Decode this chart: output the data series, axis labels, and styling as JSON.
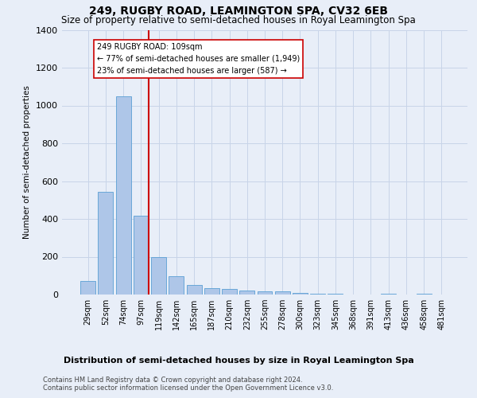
{
  "title": "249, RUGBY ROAD, LEAMINGTON SPA, CV32 6EB",
  "subtitle": "Size of property relative to semi-detached houses in Royal Leamington Spa",
  "xlabel_bottom": "Distribution of semi-detached houses by size in Royal Leamington Spa",
  "ylabel": "Number of semi-detached properties",
  "footnote": "Contains HM Land Registry data © Crown copyright and database right 2024.\nContains public sector information licensed under the Open Government Licence v3.0.",
  "categories": [
    "29sqm",
    "52sqm",
    "74sqm",
    "97sqm",
    "119sqm",
    "142sqm",
    "165sqm",
    "187sqm",
    "210sqm",
    "232sqm",
    "255sqm",
    "278sqm",
    "300sqm",
    "323sqm",
    "345sqm",
    "368sqm",
    "391sqm",
    "413sqm",
    "436sqm",
    "458sqm",
    "481sqm"
  ],
  "values": [
    70,
    545,
    1050,
    415,
    200,
    95,
    50,
    35,
    30,
    20,
    15,
    15,
    10,
    5,
    5,
    0,
    0,
    5,
    0,
    5,
    0
  ],
  "bar_color": "#aec6e8",
  "bar_edgecolor": "#5a9fd4",
  "marker_bin_index": 3,
  "marker_color": "#cc0000",
  "annotation_line1": "249 RUGBY ROAD: 109sqm",
  "annotation_line2": "← 77% of semi-detached houses are smaller (1,949)",
  "annotation_line3": "23% of semi-detached houses are larger (587) →",
  "annotation_box_color": "#ffffff",
  "annotation_box_edgecolor": "#cc0000",
  "ylim": [
    0,
    1400
  ],
  "yticks": [
    0,
    200,
    400,
    600,
    800,
    1000,
    1200,
    1400
  ],
  "grid_color": "#c8d4e8",
  "bg_color": "#e8eef8",
  "title_fontsize": 10,
  "subtitle_fontsize": 8.5,
  "bar_width": 0.85
}
